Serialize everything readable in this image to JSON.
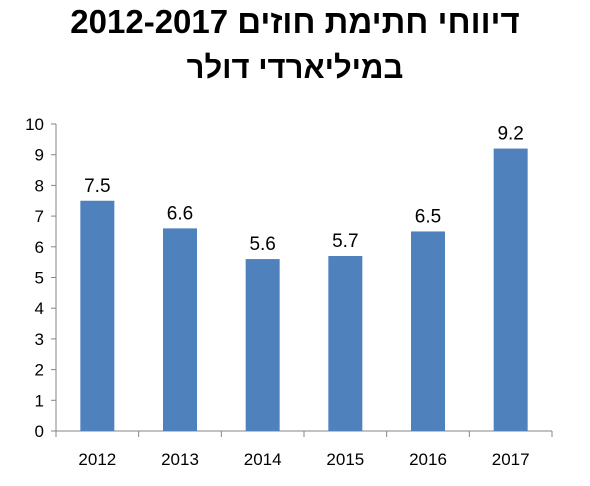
{
  "title_line1": "דיווחי חתימת חוזים  2012-2017",
  "title_line2": "במיליארדי דולר",
  "colors": {
    "bar": "#4f81bd",
    "axis": "#868686"
  },
  "chart_data": {
    "type": "bar",
    "categories": [
      "2012",
      "2013",
      "2014",
      "2015",
      "2016",
      "2017"
    ],
    "values": [
      7.5,
      6.6,
      5.6,
      5.7,
      6.5,
      9.2
    ],
    "data_labels": [
      "7.5",
      "6.6",
      "5.6",
      "5.7",
      "6.5",
      "9.2"
    ],
    "ylim": [
      0,
      10
    ],
    "yticks": [
      0,
      1,
      2,
      3,
      4,
      5,
      6,
      7,
      8,
      9,
      10
    ],
    "grid": false,
    "legend": "none"
  }
}
